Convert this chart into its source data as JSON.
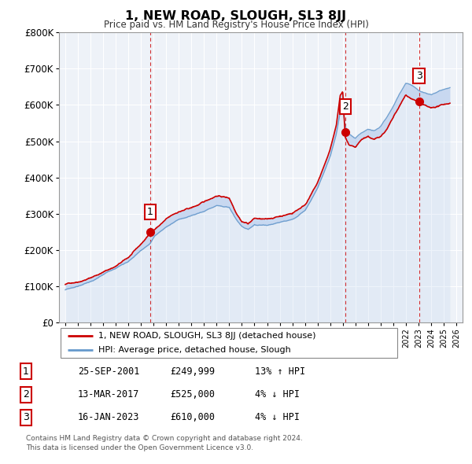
{
  "title": "1, NEW ROAD, SLOUGH, SL3 8JJ",
  "subtitle": "Price paid vs. HM Land Registry's House Price Index (HPI)",
  "footer": "Contains HM Land Registry data © Crown copyright and database right 2024.\nThis data is licensed under the Open Government Licence v3.0.",
  "legend_line1": "1, NEW ROAD, SLOUGH, SL3 8JJ (detached house)",
  "legend_line2": "HPI: Average price, detached house, Slough",
  "red_color": "#cc0000",
  "blue_fill_color": "#c8d8f0",
  "blue_line_color": "#6699cc",
  "background_color": "#ffffff",
  "chart_bg_color": "#eef2f8",
  "grid_color": "#ffffff",
  "sale_years": [
    2001.73,
    2017.19,
    2023.04
  ],
  "sale_prices": [
    249999,
    525000,
    610000
  ],
  "sale_labels": [
    "1",
    "2",
    "3"
  ],
  "table_rows": [
    [
      "1",
      "25-SEP-2001",
      "£249,999",
      "13% ↑ HPI"
    ],
    [
      "2",
      "13-MAR-2017",
      "£525,000",
      "4% ↓ HPI"
    ],
    [
      "3",
      "16-JAN-2023",
      "£610,000",
      "4% ↓ HPI"
    ]
  ],
  "ylim": [
    0,
    800000
  ],
  "xlim_start": 1994.5,
  "xlim_end": 2026.5
}
